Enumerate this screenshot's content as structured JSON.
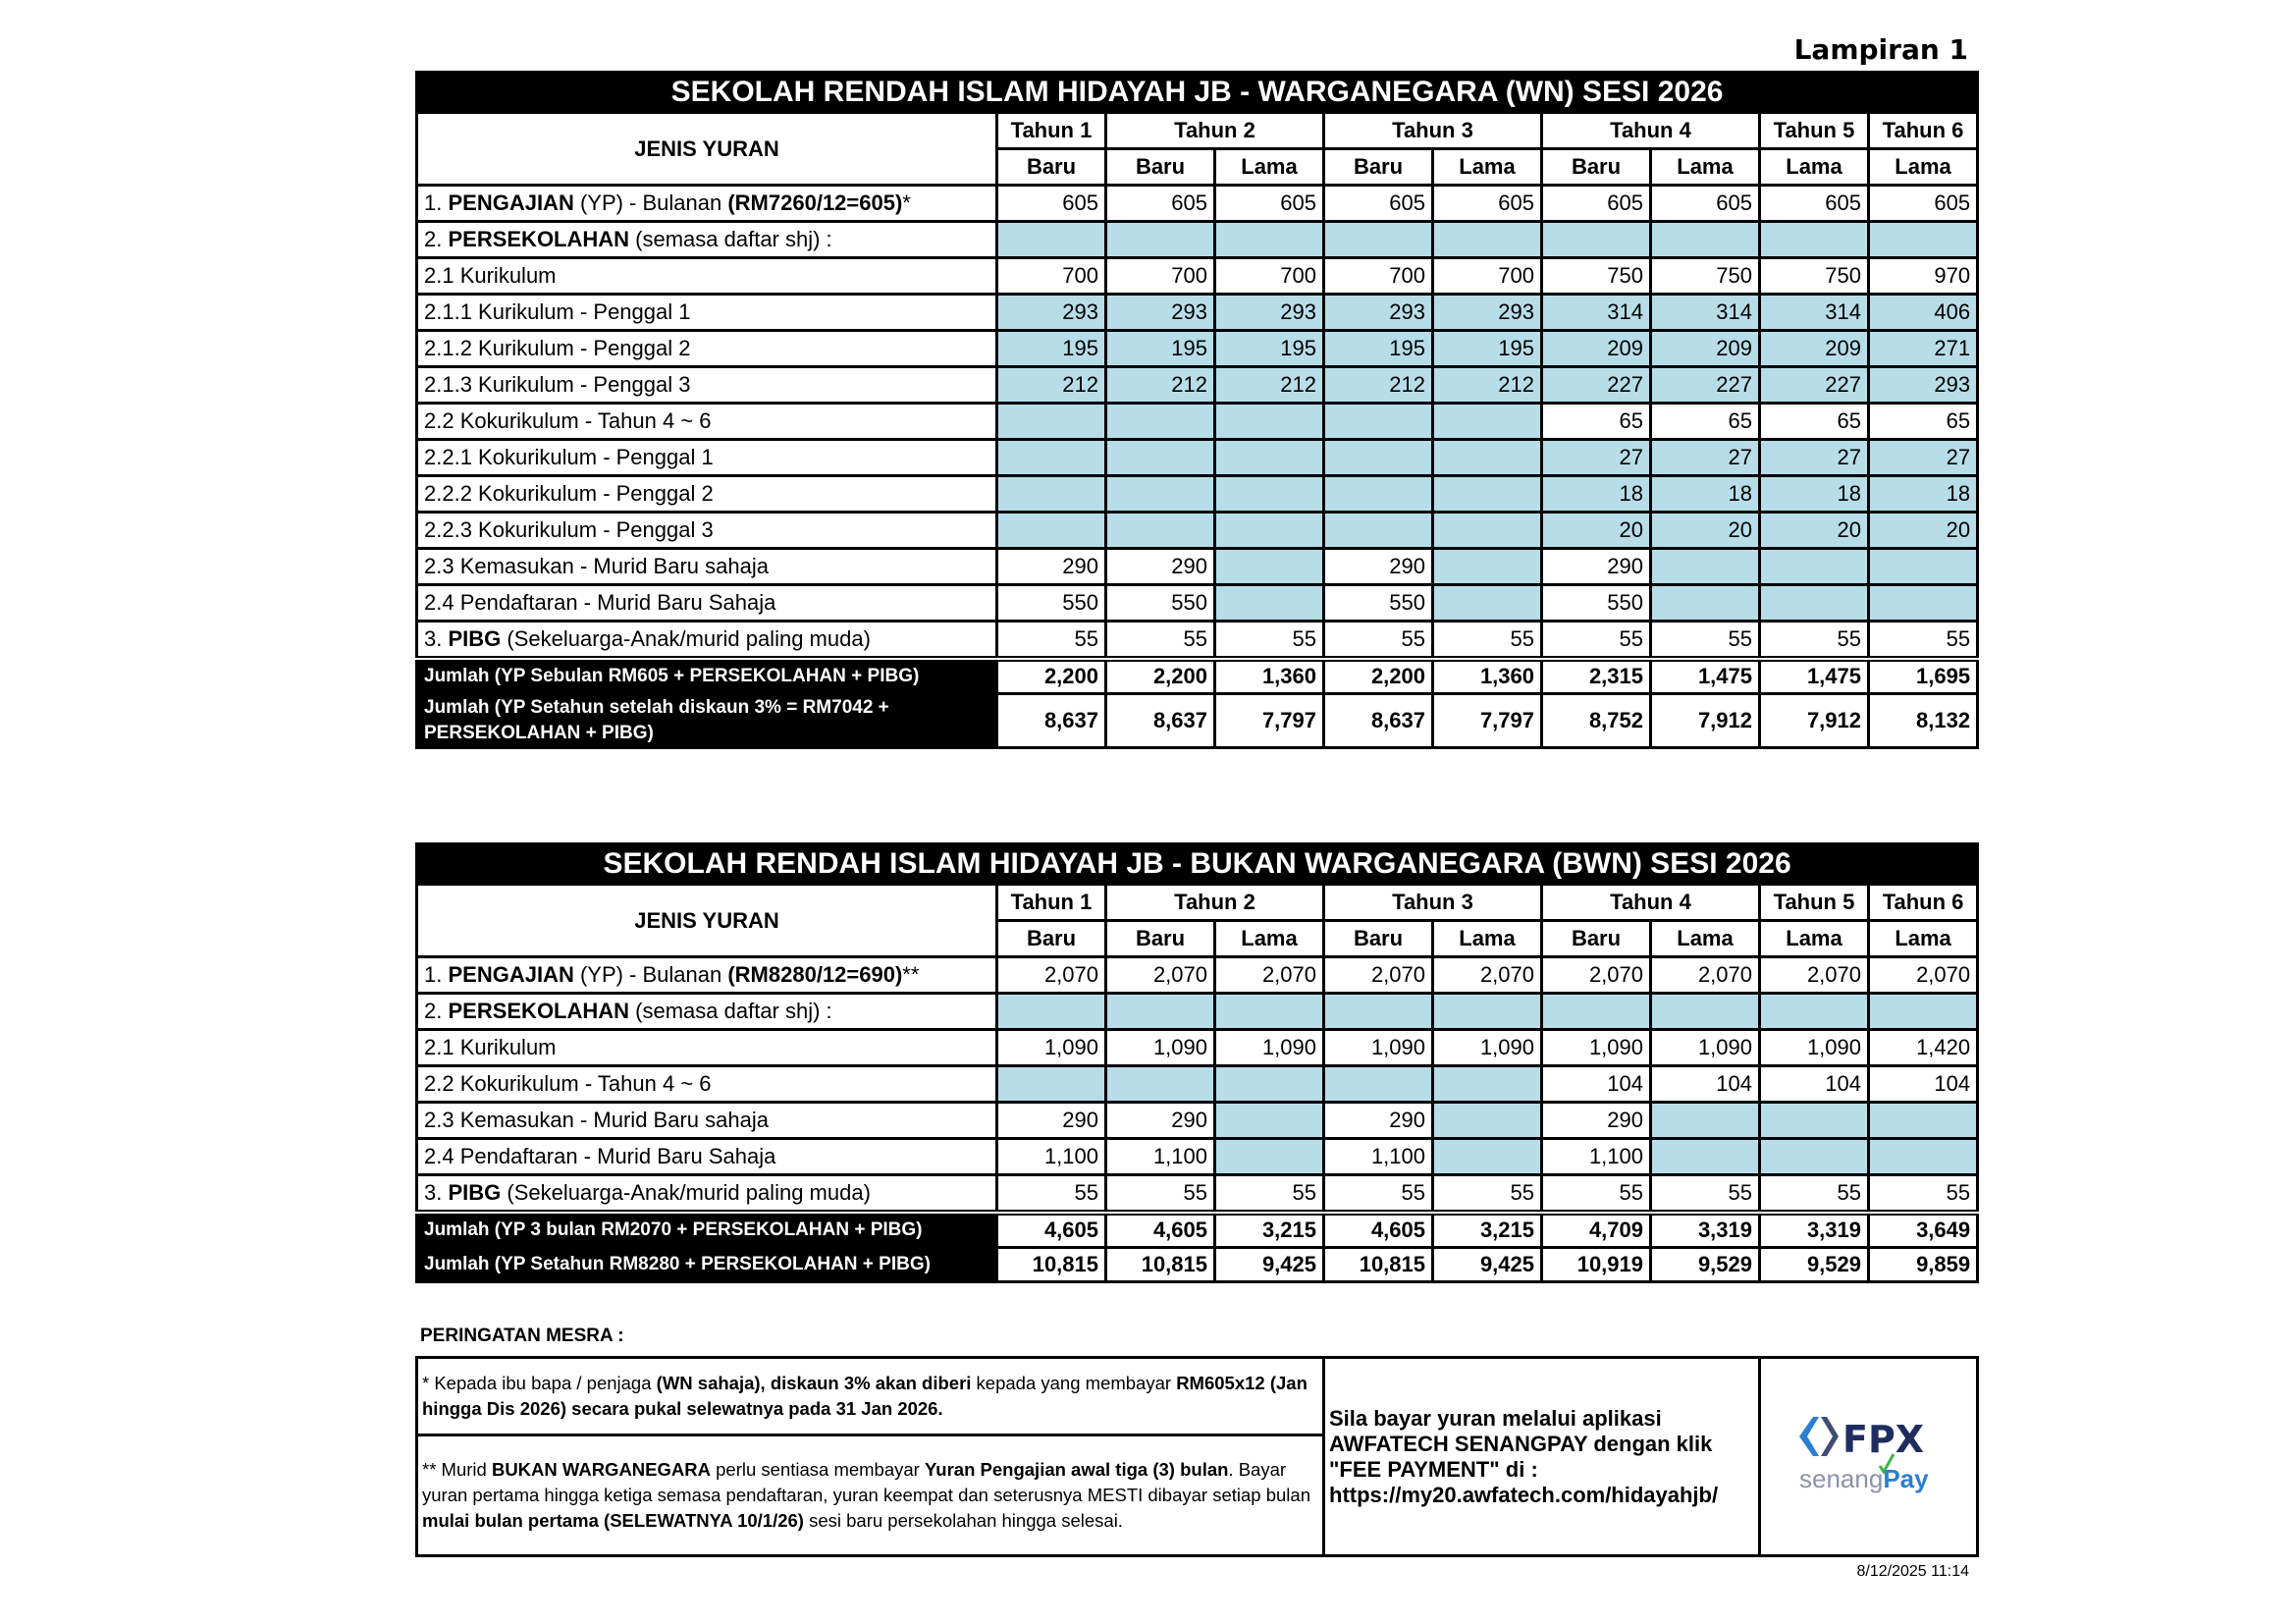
{
  "lampiran": "Lampiran 1",
  "header_labels": {
    "jenis": "JENIS YURAN",
    "years": [
      {
        "label": "Tahun 1",
        "span": 1
      },
      {
        "label": "Tahun 2",
        "span": 2
      },
      {
        "label": "Tahun 3",
        "span": 2
      },
      {
        "label": "Tahun 4",
        "span": 2
      },
      {
        "label": "Tahun 5",
        "span": 1
      },
      {
        "label": "Tahun 6",
        "span": 1
      }
    ],
    "sub": [
      "Baru",
      "Baru",
      "Lama",
      "Baru",
      "Lama",
      "Baru",
      "Lama",
      "Lama",
      "Lama"
    ]
  },
  "colors": {
    "shade": "#b7dde8",
    "title_bg": "#000000"
  },
  "tables": [
    {
      "title": "SEKOLAH RENDAH ISLAM HIDAYAH JB - WARGANEGARA (WN) SESI 2026",
      "rows": [
        {
          "indent": 0,
          "label": [
            {
              "t": "1. "
            },
            {
              "t": "PENGAJIAN",
              "b": true
            },
            {
              "t": " (YP) - Bulanan "
            },
            {
              "t": "(RM7260/12=605)",
              "b": true
            },
            {
              "t": "*"
            }
          ],
          "values": [
            "605",
            "605",
            "605",
            "605",
            "605",
            "605",
            "605",
            "605",
            "605"
          ],
          "shaded": []
        },
        {
          "indent": 0,
          "label": [
            {
              "t": "2. "
            },
            {
              "t": "PERSEKOLAHAN",
              "b": true
            },
            {
              "t": " (semasa daftar shj) :"
            }
          ],
          "values": [
            null,
            null,
            null,
            null,
            null,
            null,
            null,
            null,
            null
          ],
          "shaded": [
            0,
            1,
            2,
            3,
            4,
            5,
            6,
            7,
            8
          ]
        },
        {
          "indent": 1,
          "label": [
            {
              "t": "2.1 Kurikulum"
            }
          ],
          "values": [
            "700",
            "700",
            "700",
            "700",
            "700",
            "750",
            "750",
            "750",
            "970"
          ],
          "shaded": []
        },
        {
          "indent": 2,
          "label": [
            {
              "t": "2.1.1 Kurikulum - Penggal 1"
            }
          ],
          "values": [
            "293",
            "293",
            "293",
            "293",
            "293",
            "314",
            "314",
            "314",
            "406"
          ],
          "shaded": [
            0,
            1,
            2,
            3,
            4,
            5,
            6,
            7,
            8
          ]
        },
        {
          "indent": 2,
          "label": [
            {
              "t": "2.1.2 Kurikulum - Penggal 2"
            }
          ],
          "values": [
            "195",
            "195",
            "195",
            "195",
            "195",
            "209",
            "209",
            "209",
            "271"
          ],
          "shaded": [
            0,
            1,
            2,
            3,
            4,
            5,
            6,
            7,
            8
          ]
        },
        {
          "indent": 2,
          "label": [
            {
              "t": "2.1.3 Kurikulum - Penggal 3"
            }
          ],
          "values": [
            "212",
            "212",
            "212",
            "212",
            "212",
            "227",
            "227",
            "227",
            "293"
          ],
          "shaded": [
            0,
            1,
            2,
            3,
            4,
            5,
            6,
            7,
            8
          ]
        },
        {
          "indent": 1,
          "label": [
            {
              "t": "2.2 Kokurikulum - Tahun 4 ~ 6"
            }
          ],
          "values": [
            null,
            null,
            null,
            null,
            null,
            "65",
            "65",
            "65",
            "65"
          ],
          "shaded": [
            0,
            1,
            2,
            3,
            4
          ]
        },
        {
          "indent": 2,
          "label": [
            {
              "t": "2.2.1 Kokurikulum - Penggal 1"
            }
          ],
          "values": [
            null,
            null,
            null,
            null,
            null,
            "27",
            "27",
            "27",
            "27"
          ],
          "shaded": [
            0,
            1,
            2,
            3,
            4,
            5,
            6,
            7,
            8
          ]
        },
        {
          "indent": 2,
          "label": [
            {
              "t": "2.2.2 Kokurikulum - Penggal 2"
            }
          ],
          "values": [
            null,
            null,
            null,
            null,
            null,
            "18",
            "18",
            "18",
            "18"
          ],
          "shaded": [
            0,
            1,
            2,
            3,
            4,
            5,
            6,
            7,
            8
          ]
        },
        {
          "indent": 2,
          "label": [
            {
              "t": "2.2.3 Kokurikulum - Penggal 3"
            }
          ],
          "values": [
            null,
            null,
            null,
            null,
            null,
            "20",
            "20",
            "20",
            "20"
          ],
          "shaded": [
            0,
            1,
            2,
            3,
            4,
            5,
            6,
            7,
            8
          ]
        },
        {
          "indent": 1,
          "label": [
            {
              "t": "2.3 Kemasukan - Murid Baru sahaja"
            }
          ],
          "values": [
            "290",
            "290",
            null,
            "290",
            null,
            "290",
            null,
            null,
            null
          ],
          "shaded": [
            2,
            4,
            6,
            7,
            8
          ]
        },
        {
          "indent": 1,
          "label": [
            {
              "t": "2.4 Pendaftaran - Murid Baru Sahaja"
            }
          ],
          "values": [
            "550",
            "550",
            null,
            "550",
            null,
            "550",
            null,
            null,
            null
          ],
          "shaded": [
            2,
            4,
            6,
            7,
            8
          ]
        },
        {
          "indent": 0,
          "label": [
            {
              "t": "3. "
            },
            {
              "t": "PIBG",
              "b": true
            },
            {
              "t": " (Sekeluarga-Anak/murid paling muda)"
            }
          ],
          "values": [
            "55",
            "55",
            "55",
            "55",
            "55",
            "55",
            "55",
            "55",
            "55"
          ],
          "shaded": []
        }
      ],
      "totals": [
        {
          "label": "Jumlah  (YP Sebulan RM605 + PERSEKOLAHAN + PIBG)",
          "values": [
            "2,200",
            "2,200",
            "1,360",
            "2,200",
            "1,360",
            "2,315",
            "1,475",
            "1,475",
            "1,695"
          ]
        },
        {
          "label": "Jumlah (YP Setahun setelah diskaun 3% = RM7042 + PERSEKOLAHAN + PIBG)",
          "values": [
            "8,637",
            "8,637",
            "7,797",
            "8,637",
            "7,797",
            "8,752",
            "7,912",
            "7,912",
            "8,132"
          ],
          "tall": true
        }
      ]
    },
    {
      "title": "SEKOLAH RENDAH ISLAM HIDAYAH JB - BUKAN WARGANEGARA (BWN) SESI 2026",
      "rows": [
        {
          "indent": 0,
          "label": [
            {
              "t": "1. "
            },
            {
              "t": "PENGAJIAN",
              "b": true
            },
            {
              "t": " (YP) - Bulanan "
            },
            {
              "t": "(RM8280/12=690)",
              "b": true
            },
            {
              "t": "**"
            }
          ],
          "values": [
            "2,070",
            "2,070",
            "2,070",
            "2,070",
            "2,070",
            "2,070",
            "2,070",
            "2,070",
            "2,070"
          ],
          "shaded": []
        },
        {
          "indent": 0,
          "label": [
            {
              "t": "2. "
            },
            {
              "t": "PERSEKOLAHAN",
              "b": true
            },
            {
              "t": " (semasa daftar shj) :"
            }
          ],
          "values": [
            null,
            null,
            null,
            null,
            null,
            null,
            null,
            null,
            null
          ],
          "shaded": [
            0,
            1,
            2,
            3,
            4,
            5,
            6,
            7,
            8
          ]
        },
        {
          "indent": 1,
          "label": [
            {
              "t": "2.1 Kurikulum"
            }
          ],
          "values": [
            "1,090",
            "1,090",
            "1,090",
            "1,090",
            "1,090",
            "1,090",
            "1,090",
            "1,090",
            "1,420"
          ],
          "shaded": []
        },
        {
          "indent": 1,
          "label": [
            {
              "t": "2.2 Kokurikulum - Tahun 4 ~ 6"
            }
          ],
          "values": [
            null,
            null,
            null,
            null,
            null,
            "104",
            "104",
            "104",
            "104"
          ],
          "shaded": [
            0,
            1,
            2,
            3,
            4
          ]
        },
        {
          "indent": 1,
          "label": [
            {
              "t": "2.3 Kemasukan - Murid Baru sahaja"
            }
          ],
          "values": [
            "290",
            "290",
            null,
            "290",
            null,
            "290",
            null,
            null,
            null
          ],
          "shaded": [
            2,
            4,
            6,
            7,
            8
          ]
        },
        {
          "indent": 1,
          "label": [
            {
              "t": "2.4 Pendaftaran - Murid Baru Sahaja"
            }
          ],
          "values": [
            "1,100",
            "1,100",
            null,
            "1,100",
            null,
            "1,100",
            null,
            null,
            null
          ],
          "shaded": [
            2,
            4,
            6,
            7,
            8
          ]
        },
        {
          "indent": 0,
          "label": [
            {
              "t": "3. "
            },
            {
              "t": "PIBG",
              "b": true
            },
            {
              "t": " (Sekeluarga-Anak/murid paling muda)"
            }
          ],
          "values": [
            "55",
            "55",
            "55",
            "55",
            "55",
            "55",
            "55",
            "55",
            "55"
          ],
          "shaded": []
        }
      ],
      "totals": [
        {
          "label": "Jumlah (YP 3 bulan RM2070 + PERSEKOLAHAN + PIBG)",
          "values": [
            "4,605",
            "4,605",
            "3,215",
            "4,605",
            "3,215",
            "4,709",
            "3,319",
            "3,319",
            "3,649"
          ]
        },
        {
          "label": "Jumlah (YP Setahun RM8280 + PERSEKOLAHAN + PIBG)",
          "values": [
            "10,815",
            "10,815",
            "9,425",
            "10,815",
            "9,425",
            "10,919",
            "9,529",
            "9,529",
            "9,859"
          ]
        }
      ]
    }
  ],
  "notes": {
    "heading": "PERINGATAN MESRA :",
    "note1": [
      {
        "t": "* Kepada ibu bapa / penjaga "
      },
      {
        "t": "(WN sahaja), diskaun 3% akan diberi",
        "b": true
      },
      {
        "t": " kepada yang membayar "
      },
      {
        "t": "RM605x12 (Jan hingga Dis 2026) secara pukal selewatnya pada 31 Jan 2026.",
        "b": true
      }
    ],
    "note2": [
      {
        "t": "** Murid "
      },
      {
        "t": "BUKAN WARGANEGARA",
        "b": true
      },
      {
        "t": " perlu sentiasa membayar "
      },
      {
        "t": "Yuran Pengajian awal tiga (3) bulan",
        "b": true
      },
      {
        "t": ". Bayar yuran pertama hingga ketiga semasa pendaftaran, yuran keempat dan seterusnya MESTI dibayar setiap bulan "
      },
      {
        "t": "mulai bulan pertama (SELEWATNYA 10/1/26)",
        "b": true
      },
      {
        "t": " sesi baru persekolahan hingga selesai."
      }
    ],
    "payment": [
      "Sila bayar yuran melalui aplikasi",
      "AWFATECH SENANGPAY dengan klik",
      "\"FEE PAYMENT\" di :",
      "https://my20.awfatech.com/hidayahjb/"
    ],
    "logo": {
      "fpx": "FPX",
      "senang": "senang",
      "pay": "Pay",
      "colors": {
        "navy": "#1f2d5c",
        "blue": "#2a7fd4",
        "gray": "#8a93a8",
        "green": "#3cb54a"
      }
    }
  },
  "timestamp": "8/12/2025 11:14"
}
